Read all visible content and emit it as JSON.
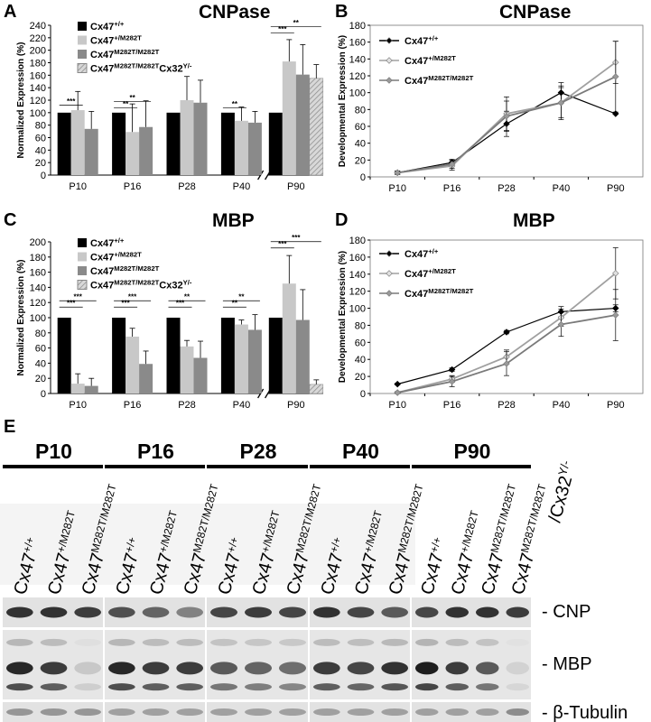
{
  "panel_letters": {
    "A": "A",
    "B": "B",
    "C": "C",
    "D": "D",
    "E": "E"
  },
  "titles": {
    "A": "CNPase",
    "B": "CNPase",
    "C": "MBP",
    "D": "MBP"
  },
  "axis_labels": {
    "normalized": "Normalized Expression (%)",
    "developmental": "Developmental Expression (%)"
  },
  "genotype_labels": {
    "wt": {
      "base": "Cx47",
      "sup": "+/+"
    },
    "het": {
      "base": "Cx47",
      "sup": "+/M282T"
    },
    "hom": {
      "base": "Cx47",
      "sup": "M282T/M282T"
    },
    "dko": {
      "base": "Cx47",
      "sup": "M282T/M282T",
      "base2": "Cx32",
      "sup2": "Y/-"
    }
  },
  "colors": {
    "wt": "#000000",
    "het": "#c8c8c8",
    "hom": "#8a8a8a",
    "dko": "#b4b4b4",
    "line_wt": "#000000",
    "line_het": "#a0a0a0",
    "line_hom": "#7a7a7a"
  },
  "chart_data": [
    {
      "panel": "A",
      "type": "bar",
      "title": "CNPase",
      "ylabel": "Normalized Expression (%)",
      "ylim": [
        0,
        240
      ],
      "yticks": [
        0,
        20,
        40,
        60,
        80,
        100,
        120,
        140,
        160,
        180,
        200,
        220,
        240
      ],
      "categories": [
        "P10",
        "P16",
        "P28",
        "P40",
        "P90"
      ],
      "axis_break_before": "P90",
      "series": [
        {
          "key": "wt",
          "values": [
            100,
            100,
            100,
            100,
            100
          ],
          "errors": [
            0,
            0,
            0,
            0,
            0
          ]
        },
        {
          "key": "het",
          "values": [
            104,
            69,
            120,
            87,
            182
          ],
          "errors": [
            30,
            45,
            38,
            22,
            35
          ]
        },
        {
          "key": "hom",
          "values": [
            74,
            77,
            116,
            84,
            161
          ],
          "errors": [
            28,
            42,
            36,
            18,
            48
          ]
        },
        {
          "key": "dko",
          "values": [
            null,
            null,
            null,
            null,
            155
          ],
          "errors": [
            null,
            null,
            null,
            null,
            22
          ]
        }
      ],
      "significance": [
        {
          "category": "P10",
          "text": "***",
          "level": 0
        },
        {
          "category": "P16",
          "text": "**",
          "level": 0
        },
        {
          "category": "P16",
          "text": "**",
          "level": 1
        },
        {
          "category": "P40",
          "text": "**",
          "level": 0
        },
        {
          "category": "P90",
          "text": "***",
          "level": 0
        },
        {
          "category": "P90",
          "text": "**",
          "level": 1
        }
      ]
    },
    {
      "panel": "B",
      "type": "line",
      "title": "CNPase",
      "ylabel": "Developmental Expression (%)",
      "ylim": [
        0,
        180
      ],
      "yticks": [
        0,
        20,
        40,
        60,
        80,
        100,
        120,
        140,
        160,
        180
      ],
      "x": [
        "P10",
        "P16",
        "P28",
        "P40",
        "P90"
      ],
      "legend": "top-left",
      "series": [
        {
          "key": "wt",
          "values": [
            5,
            17,
            63,
            100,
            75
          ],
          "errors": [
            2,
            4,
            15,
            12,
            0
          ]
        },
        {
          "key": "het",
          "values": [
            5,
            13,
            75,
            88,
            136
          ],
          "errors": [
            2,
            5,
            20,
            18,
            25
          ]
        },
        {
          "key": "hom",
          "values": [
            5,
            15,
            72,
            88,
            119
          ],
          "errors": [
            2,
            5,
            18,
            20,
            42
          ]
        }
      ]
    },
    {
      "panel": "C",
      "type": "bar",
      "title": "MBP",
      "ylabel": "Normalized Expression (%)",
      "ylim": [
        0,
        200
      ],
      "yticks": [
        0,
        20,
        40,
        60,
        80,
        100,
        120,
        140,
        160,
        180,
        200
      ],
      "categories": [
        "P10",
        "P16",
        "P28",
        "P40",
        "P90"
      ],
      "axis_break_before": "P90",
      "series": [
        {
          "key": "wt",
          "values": [
            100,
            100,
            100,
            100,
            100
          ],
          "errors": [
            0,
            0,
            0,
            0,
            0
          ]
        },
        {
          "key": "het",
          "values": [
            13,
            75,
            62,
            91,
            145
          ],
          "errors": [
            13,
            11,
            8,
            6,
            37
          ]
        },
        {
          "key": "hom",
          "values": [
            10,
            39,
            47,
            84,
            97
          ],
          "errors": [
            10,
            17,
            22,
            20,
            40
          ]
        },
        {
          "key": "dko",
          "values": [
            null,
            null,
            null,
            null,
            12
          ],
          "errors": [
            null,
            null,
            null,
            null,
            6
          ]
        }
      ],
      "significance": [
        {
          "category": "P10",
          "text": "***",
          "level": 0
        },
        {
          "category": "P10",
          "text": "***",
          "level": 1
        },
        {
          "category": "P16",
          "text": "***",
          "level": 0
        },
        {
          "category": "P16",
          "text": "***",
          "level": 1
        },
        {
          "category": "P28",
          "text": "***",
          "level": 0
        },
        {
          "category": "P28",
          "text": "**",
          "level": 1
        },
        {
          "category": "P40",
          "text": "**",
          "level": 0
        },
        {
          "category": "P40",
          "text": "**",
          "level": 1
        },
        {
          "category": "P90",
          "text": "***",
          "level": 0
        },
        {
          "category": "P90",
          "text": "***",
          "level": 1
        }
      ]
    },
    {
      "panel": "D",
      "type": "line",
      "title": "MBP",
      "ylabel": "Developmental Expression (%)",
      "ylim": [
        0,
        180
      ],
      "yticks": [
        0,
        20,
        40,
        60,
        80,
        100,
        120,
        140,
        160,
        180
      ],
      "x": [
        "P10",
        "P16",
        "P28",
        "P40",
        "P90"
      ],
      "legend": "top-left",
      "series": [
        {
          "key": "wt",
          "values": [
            11,
            28,
            72,
            96,
            100
          ],
          "errors": [
            1,
            2,
            2,
            6,
            4
          ]
        },
        {
          "key": "het",
          "values": [
            1,
            17,
            43,
            89,
            141
          ],
          "errors": [
            1,
            4,
            8,
            10,
            30
          ]
        },
        {
          "key": "hom",
          "values": [
            1,
            14,
            35,
            81,
            92
          ],
          "errors": [
            1,
            6,
            14,
            14,
            30
          ]
        }
      ]
    }
  ],
  "blot": {
    "timepoints": [
      "P10",
      "P16",
      "P28",
      "P40",
      "P90"
    ],
    "extra_label": "/Cx32",
    "extra_sup": "Y/-",
    "lane_labels": [
      {
        "base": "Cx47",
        "sup": "+/+"
      },
      {
        "base": "Cx47",
        "sup": "+/M282T"
      },
      {
        "base": "Cx47",
        "sup": "M282T/M282T"
      }
    ],
    "p90_lane_labels": [
      {
        "base": "Cx47",
        "sup": "+/+"
      },
      {
        "base": "Cx47",
        "sup": "+/M282T"
      },
      {
        "base": "Cx47",
        "sup": "M282T/M282T"
      },
      {
        "base": "Cx47",
        "sup": "M282T/M282T"
      }
    ],
    "rows": [
      "- CNP",
      "- MBP",
      "- β-Tubulin"
    ]
  }
}
